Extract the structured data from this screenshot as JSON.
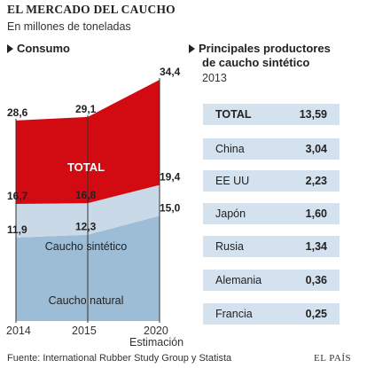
{
  "header": {
    "title": "EL MERCADO DEL CAUCHO",
    "subtitle": "En millones de toneladas"
  },
  "consumo": {
    "heading": "Consumo"
  },
  "productores": {
    "heading_line1": "Principales productores",
    "heading_line2": "de caucho sintético",
    "year": "2013",
    "rows": [
      {
        "name": "TOTAL",
        "value": "13,59"
      },
      {
        "name": "China",
        "value": "3,04"
      },
      {
        "name": "EE UU",
        "value": "2,23"
      },
      {
        "name": "Japón",
        "value": "1,60"
      },
      {
        "name": "Rusia",
        "value": "1,34"
      },
      {
        "name": "Alemania",
        "value": "0,36"
      },
      {
        "name": "Francia",
        "value": "0,25"
      }
    ]
  },
  "footer": {
    "source": "Fuente: International Rubber Study Group y Statista",
    "brand": "EL PAÍS"
  },
  "chart_data": [
    {
      "type": "area",
      "stacked": true,
      "x": [
        "2014",
        "2015",
        "2020"
      ],
      "x_sub_label": "Estimación",
      "series": [
        {
          "name": "Caucho natural",
          "values": [
            11.9,
            12.3,
            15.0
          ],
          "labels": [
            "11,9",
            "12,3",
            "15,0"
          ],
          "color": "#9dbdd6"
        },
        {
          "name": "Caucho sintético",
          "values": [
            16.7,
            16.8,
            19.4
          ],
          "labels": [
            "16,7",
            "16,8",
            "19,4"
          ],
          "color": "#c9d9e7"
        },
        {
          "name": "TOTAL",
          "values": [
            28.6,
            29.1,
            34.4
          ],
          "labels": [
            "28,6",
            "29,1",
            "34,4"
          ],
          "color": "#d20a11"
        }
      ],
      "ylim": [
        0,
        34.4
      ],
      "grid": false
    },
    {
      "type": "table",
      "title": "Principales productores de caucho sintético",
      "subtitle": "2013",
      "categories": [
        "TOTAL",
        "China",
        "EE UU",
        "Japón",
        "Rusia",
        "Alemania",
        "Francia"
      ],
      "values": [
        13.59,
        3.04,
        2.23,
        1.6,
        1.34,
        0.36,
        0.25
      ]
    }
  ]
}
